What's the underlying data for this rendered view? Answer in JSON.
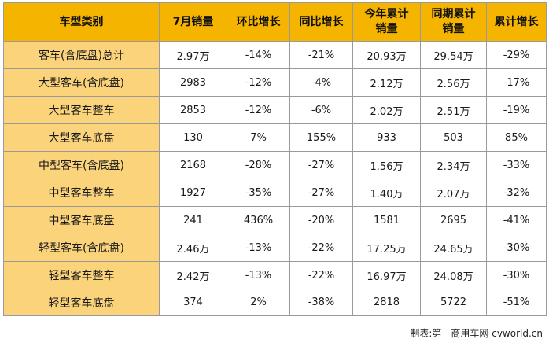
{
  "table": {
    "headers": [
      "车型类别",
      "7月销量",
      "环比增长",
      "同比增长",
      "今年累计销量",
      "同期累计销量",
      "累计增长"
    ],
    "rows": [
      [
        "客车(含底盘)总计",
        "2.97万",
        "-14%",
        "-21%",
        "20.93万",
        "29.54万",
        "-29%"
      ],
      [
        "大型客车(含底盘)",
        "2983",
        "-12%",
        "-4%",
        "2.12万",
        "2.56万",
        "-17%"
      ],
      [
        "大型客车整车",
        "2853",
        "-12%",
        "-6%",
        "2.02万",
        "2.51万",
        "-19%"
      ],
      [
        "大型客车底盘",
        "130",
        "7%",
        "155%",
        "933",
        "503",
        "85%"
      ],
      [
        "中型客车(含底盘)",
        "2168",
        "-28%",
        "-27%",
        "1.56万",
        "2.34万",
        "-33%"
      ],
      [
        "中型客车整车",
        "1927",
        "-35%",
        "-27%",
        "1.40万",
        "2.07万",
        "-32%"
      ],
      [
        "中型客车底盘",
        "241",
        "436%",
        "-20%",
        "1581",
        "2695",
        "-41%"
      ],
      [
        "轻型客车(含底盘)",
        "2.46万",
        "-13%",
        "-22%",
        "17.25万",
        "24.65万",
        "-30%"
      ],
      [
        "轻型客车整车",
        "2.42万",
        "-13%",
        "-22%",
        "16.97万",
        "24.08万",
        "-30%"
      ],
      [
        "轻型客车底盘",
        "374",
        "2%",
        "-38%",
        "2818",
        "5722",
        "-51%"
      ]
    ]
  },
  "credit": "制表:第一商用车网 cvworld.cn",
  "colors": {
    "header_bg": "#f5b400",
    "name_bg": "#fbd37a",
    "border": "#9a9a9a"
  }
}
